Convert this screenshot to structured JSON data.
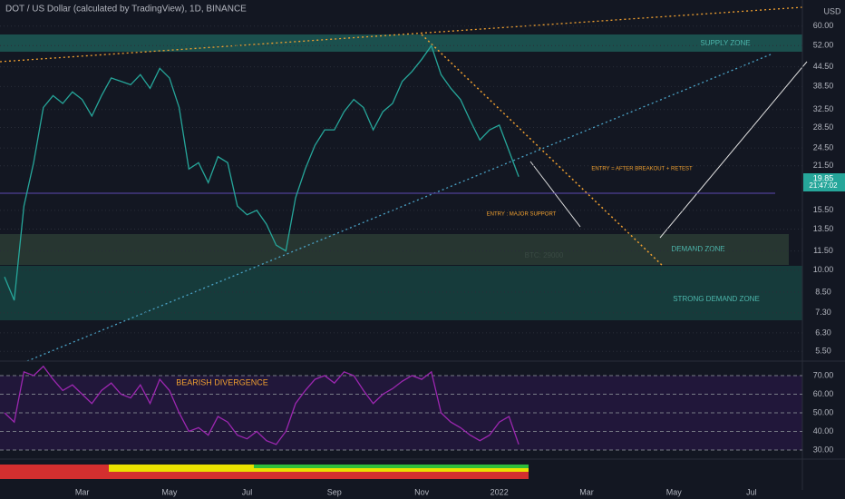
{
  "chart_data": [
    {
      "type": "line",
      "title": "DOT / US Dollar (calculated by TradingView), 1D, BINANCE",
      "currency": "USD",
      "log_scale": true,
      "grid": true,
      "color": "#26a69a",
      "last_price": 19.85,
      "countdown": "21:47:02",
      "annotations": [
        "SUPPLY ZONE",
        "DEMAND ZONE",
        "STRONG DEMAND ZONE",
        "BTC: 29000",
        "ENTRY = AFTER BREAKOUT + RETEST",
        "ENTRY : MAJOR SUPPORT"
      ],
      "categories": [
        null,
        null,
        null,
        null,
        null,
        null,
        null,
        null,
        "Mar",
        null,
        null,
        null,
        null,
        null,
        null,
        null,
        null,
        "May",
        null,
        null,
        null,
        null,
        null,
        null,
        null,
        "Jul",
        null,
        null,
        null,
        null,
        null,
        null,
        null,
        null,
        "Sep",
        null,
        null,
        null,
        null,
        null,
        null,
        null,
        null,
        "Nov",
        null,
        null,
        null,
        null,
        null,
        null,
        null,
        "2022",
        null,
        null,
        null,
        null,
        null,
        null,
        null,
        null,
        "Mar",
        null,
        null,
        null,
        null,
        null,
        null,
        null,
        null,
        "May",
        null,
        null,
        null,
        null,
        null,
        null,
        null,
        "Jul",
        null,
        null,
        null,
        null
      ],
      "values": [
        9.5,
        8,
        16,
        22,
        33,
        36,
        34,
        37,
        35,
        31,
        36,
        41,
        40,
        39,
        42,
        38,
        44,
        41,
        33,
        21,
        22,
        19,
        23,
        22,
        16,
        15,
        15.5,
        14,
        12,
        11.5,
        17,
        21,
        25,
        28,
        28,
        32,
        35,
        33,
        28,
        32,
        34,
        40,
        43,
        47,
        52,
        42,
        38,
        35,
        30,
        26,
        28,
        29,
        24,
        19.85,
        null,
        null,
        null,
        null,
        null,
        null,
        null,
        null,
        null,
        null,
        null,
        null,
        null,
        null,
        null,
        null,
        null,
        null,
        null,
        null,
        null,
        null,
        null,
        null,
        null,
        null,
        null,
        null
      ],
      "ylim": [
        5.12,
        72.7
      ],
      "yticks": [
        {
          "value": 60,
          "label": "60.00"
        },
        {
          "value": 52,
          "label": "52.00"
        },
        {
          "value": 44.5,
          "label": "44.50"
        },
        {
          "value": 38.5,
          "label": "38.50"
        },
        {
          "value": 32.5,
          "label": "32.50"
        },
        {
          "value": 28.5,
          "label": "28.50"
        },
        {
          "value": 24.5,
          "label": "24.50"
        },
        {
          "value": 21.5,
          "label": "21.50"
        },
        {
          "value": 15.5,
          "label": "15.50"
        },
        {
          "value": 13.5,
          "label": "13.50"
        },
        {
          "value": 11.5,
          "label": "11.50"
        },
        {
          "value": 10,
          "label": "10.00"
        },
        {
          "value": 8.5,
          "label": "8.50"
        },
        {
          "value": 7.3,
          "label": "7.30"
        },
        {
          "value": 6.3,
          "label": "6.30"
        },
        {
          "value": 5.5,
          "label": "5.50"
        }
      ]
    },
    {
      "type": "line",
      "color": "#9c27b0",
      "annotation": "BEARISH DIVERGENCE",
      "values": [
        50,
        45,
        72,
        70,
        75,
        68,
        62,
        65,
        60,
        55,
        62,
        66,
        60,
        58,
        65,
        55,
        68,
        62,
        50,
        40,
        42,
        38,
        48,
        45,
        38,
        36,
        40,
        35,
        33,
        40,
        55,
        62,
        68,
        70,
        66,
        72,
        70,
        62,
        55,
        60,
        63,
        67,
        70,
        68,
        72,
        50,
        45,
        42,
        38,
        35,
        38,
        45,
        48,
        33,
        null,
        null,
        null,
        null,
        null,
        null,
        null,
        null,
        null,
        null,
        null,
        null,
        null,
        null,
        null,
        null,
        null,
        null,
        null,
        null,
        null,
        null,
        null,
        null,
        null,
        null,
        null,
        null
      ],
      "ylim": [
        25.6,
        77.8
      ],
      "yticks": [
        {
          "value": 70,
          "label": "70.00"
        },
        {
          "value": 60,
          "label": "60.00"
        },
        {
          "value": 50,
          "label": "50.00"
        },
        {
          "value": 40,
          "label": "40.00"
        },
        {
          "value": 30,
          "label": "30.00"
        }
      ]
    }
  ]
}
